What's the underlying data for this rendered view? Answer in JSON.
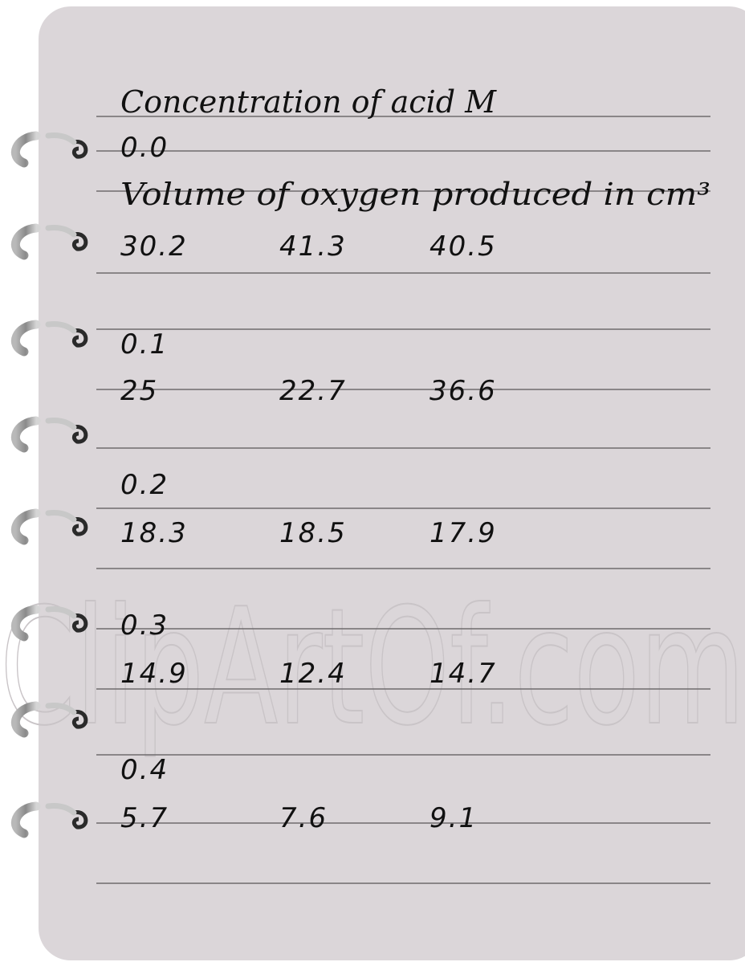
{
  "notes": {
    "heading": "Concentration of acid M",
    "volume_label": "Volume of oxygen produced in cm³",
    "groups": [
      {
        "concentration": "0.0",
        "volumes": [
          "30.2",
          "41.3",
          "40.5"
        ]
      },
      {
        "concentration": "0.1",
        "volumes": [
          "25",
          "22.7",
          "36.6"
        ]
      },
      {
        "concentration": "0.2",
        "volumes": [
          "18.3",
          "18.5",
          "17.9"
        ]
      },
      {
        "concentration": "0.3",
        "volumes": [
          "14.9",
          "12.4",
          "14.7"
        ]
      },
      {
        "concentration": "0.4",
        "volumes": [
          "5.7",
          "7.6",
          "9.1"
        ]
      }
    ],
    "watermark": "ClipArtOf.com"
  }
}
